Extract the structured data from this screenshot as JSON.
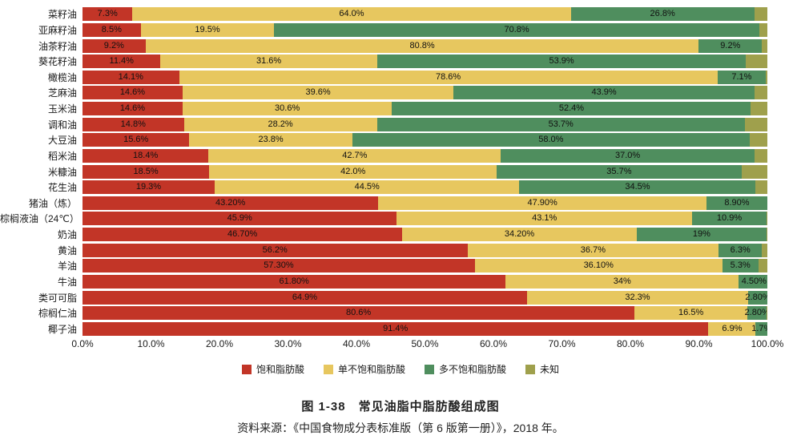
{
  "chart_data": {
    "type": "bar",
    "orientation": "horizontal",
    "stacked": true,
    "title": "图 1-38　常见油脂中脂肪酸组成图",
    "source": "资料来源：《中国食物成分表标准版（第 6 版第一册）》，2018 年。",
    "xlabel": "",
    "ylabel": "",
    "xlim": [
      0,
      100
    ],
    "grid": false,
    "legend_position": "bottom",
    "x_tick_labels": [
      "0.0%",
      "10.0%",
      "20.0%",
      "30.0%",
      "40.0%",
      "50.0%",
      "60.0%",
      "70.0%",
      "80.0%",
      "90.0%",
      "100.0%"
    ],
    "legend": [
      {
        "key": "saturated",
        "label": "饱和脂肪酸",
        "color": "#c23527"
      },
      {
        "key": "monounsaturated",
        "label": "单不饱和脂肪酸",
        "color": "#e7c75f"
      },
      {
        "key": "polyunsaturated",
        "label": "多不饱和脂肪酸",
        "color": "#4f8e5e"
      },
      {
        "key": "unknown",
        "label": "未知",
        "color": "#9fa04c"
      }
    ],
    "rows": [
      {
        "category": "菜籽油",
        "values": [
          7.3,
          64.0,
          26.8,
          1.9
        ],
        "value_labels": [
          "7.3%",
          "64.0%",
          "26.8%",
          ""
        ]
      },
      {
        "category": "亚麻籽油",
        "values": [
          8.5,
          19.5,
          70.8,
          1.2
        ],
        "value_labels": [
          "8.5%",
          "19.5%",
          "70.8%",
          ""
        ]
      },
      {
        "category": "油茶籽油",
        "values": [
          9.2,
          80.8,
          9.2,
          0.8
        ],
        "value_labels": [
          "9.2%",
          "80.8%",
          "9.2%",
          ""
        ]
      },
      {
        "category": "葵花籽油",
        "values": [
          11.4,
          31.6,
          53.9,
          3.1
        ],
        "value_labels": [
          "11.4%",
          "31.6%",
          "53.9%",
          ""
        ]
      },
      {
        "category": "橄榄油",
        "values": [
          14.1,
          78.6,
          7.1,
          0.2
        ],
        "value_labels": [
          "14.1%",
          "78.6%",
          "7.1%",
          ""
        ]
      },
      {
        "category": "芝麻油",
        "values": [
          14.6,
          39.6,
          43.9,
          1.9
        ],
        "value_labels": [
          "14.6%",
          "39.6%",
          "43.9%",
          ""
        ]
      },
      {
        "category": "玉米油",
        "values": [
          14.6,
          30.6,
          52.4,
          2.4
        ],
        "value_labels": [
          "14.6%",
          "30.6%",
          "52.4%",
          ""
        ]
      },
      {
        "category": "调和油",
        "values": [
          14.8,
          28.2,
          53.7,
          3.3
        ],
        "value_labels": [
          "14.8%",
          "28.2%",
          "53.7%",
          ""
        ]
      },
      {
        "category": "大豆油",
        "values": [
          15.6,
          23.8,
          58.0,
          2.6
        ],
        "value_labels": [
          "15.6%",
          "23.8%",
          "58.0%",
          ""
        ]
      },
      {
        "category": "稻米油",
        "values": [
          18.4,
          42.7,
          37.0,
          1.9
        ],
        "value_labels": [
          "18.4%",
          "42.7%",
          "37.0%",
          ""
        ]
      },
      {
        "category": "米糠油",
        "values": [
          18.5,
          42.0,
          35.7,
          3.8
        ],
        "value_labels": [
          "18.5%",
          "42.0%",
          "35.7%",
          ""
        ]
      },
      {
        "category": "花生油",
        "values": [
          19.3,
          44.5,
          34.5,
          1.7
        ],
        "value_labels": [
          "19.3%",
          "44.5%",
          "34.5%",
          ""
        ]
      },
      {
        "category": "猪油（炼）",
        "values": [
          43.2,
          47.9,
          8.9,
          0
        ],
        "value_labels": [
          "43.20%",
          "47.90%",
          "8.90%",
          ""
        ]
      },
      {
        "category": "棕榈液油（24℃）",
        "values": [
          45.9,
          43.1,
          10.9,
          0.1
        ],
        "value_labels": [
          "45.9%",
          "43.1%",
          "10.9%",
          ""
        ]
      },
      {
        "category": "奶油",
        "values": [
          46.7,
          34.2,
          19,
          0.1
        ],
        "value_labels": [
          "46.70%",
          "34.20%",
          "19%",
          ""
        ]
      },
      {
        "category": "黄油",
        "values": [
          56.2,
          36.7,
          6.3,
          0.8
        ],
        "value_labels": [
          "56.2%",
          "36.7%",
          "6.3%",
          ""
        ]
      },
      {
        "category": "羊油",
        "values": [
          57.3,
          36.1,
          5.3,
          1.3
        ],
        "value_labels": [
          "57.30%",
          "36.10%",
          "5.3%",
          ""
        ]
      },
      {
        "category": "牛油",
        "values": [
          61.8,
          34,
          4.5,
          0
        ],
        "value_labels": [
          "61.80%",
          "34%",
          "4.50%",
          ""
        ]
      },
      {
        "category": "类可可脂",
        "values": [
          64.9,
          32.3,
          2.8,
          0
        ],
        "value_labels": [
          "64.9%",
          "32.3%",
          "2.80%",
          ""
        ]
      },
      {
        "category": "棕榈仁油",
        "values": [
          80.6,
          16.5,
          2.8,
          0.1
        ],
        "value_labels": [
          "80.6%",
          "16.5%",
          "2.80%",
          ""
        ]
      },
      {
        "category": "椰子油",
        "values": [
          91.4,
          6.9,
          1.7,
          0
        ],
        "value_labels": [
          "91.4%",
          "6.9%",
          "1.7%",
          ""
        ]
      }
    ]
  }
}
